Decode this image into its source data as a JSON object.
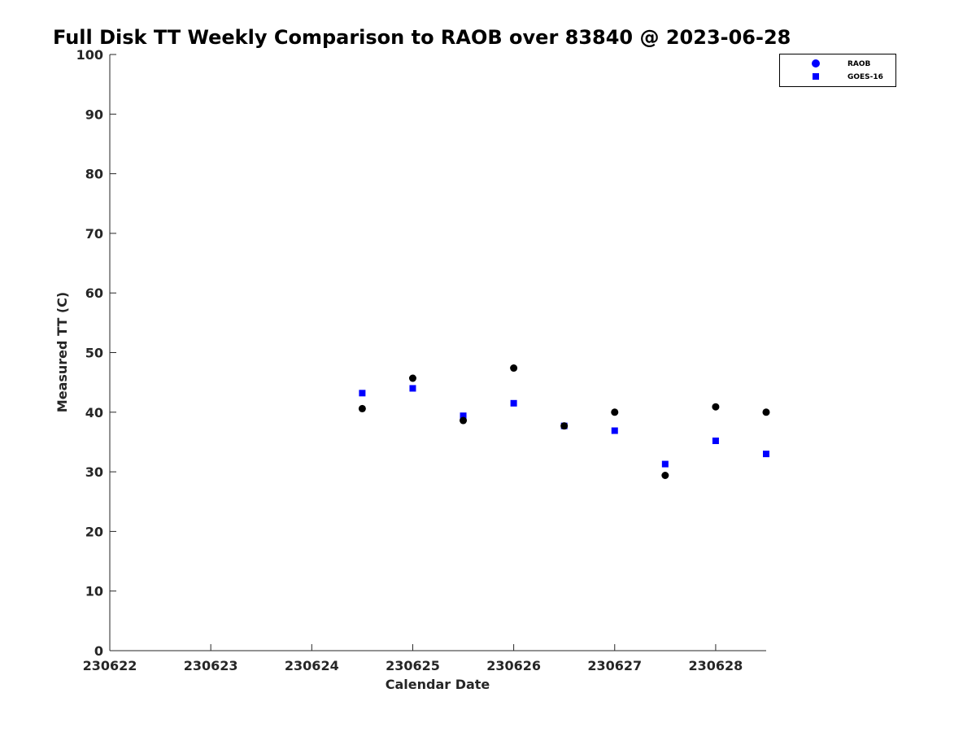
{
  "chart_data": {
    "type": "scatter",
    "title": "Full Disk TT Weekly Comparison to RAOB over 83840 @ 2023-06-28",
    "xlabel": "Calendar Date",
    "ylabel": "Measured TT (C)",
    "xlim": [
      230622,
      230628.5
    ],
    "ylim": [
      0,
      100
    ],
    "xticks": [
      230622,
      230623,
      230624,
      230625,
      230626,
      230627,
      230628
    ],
    "xtick_labels": [
      "230622",
      "230623",
      "230624",
      "230625",
      "230626",
      "230627",
      "230628"
    ],
    "yticks": [
      0,
      10,
      20,
      30,
      40,
      50,
      60,
      70,
      80,
      90,
      100
    ],
    "ytick_labels": [
      "0",
      "10",
      "20",
      "30",
      "40",
      "50",
      "60",
      "70",
      "80",
      "90",
      "100"
    ],
    "grid": false,
    "legend_position": "top-right",
    "series": [
      {
        "name": "RAOB",
        "marker": "circle",
        "color": "#000000",
        "legend_color": "#0000ff",
        "x": [
          230624.5,
          230625,
          230625.5,
          230626,
          230626.5,
          230627,
          230627.5,
          230628,
          230628.5
        ],
        "y": [
          40.6,
          45.7,
          38.6,
          47.4,
          37.7,
          40.0,
          29.4,
          40.9,
          40.0
        ]
      },
      {
        "name": "GOES-16",
        "marker": "square",
        "color": "#0000ff",
        "legend_color": "#0000ff",
        "x": [
          230624.5,
          230625,
          230625.5,
          230626,
          230626.5,
          230627,
          230627.5,
          230628,
          230628.5
        ],
        "y": [
          43.2,
          44.0,
          39.4,
          41.5,
          37.7,
          36.9,
          31.3,
          35.2,
          33.0
        ]
      }
    ]
  }
}
